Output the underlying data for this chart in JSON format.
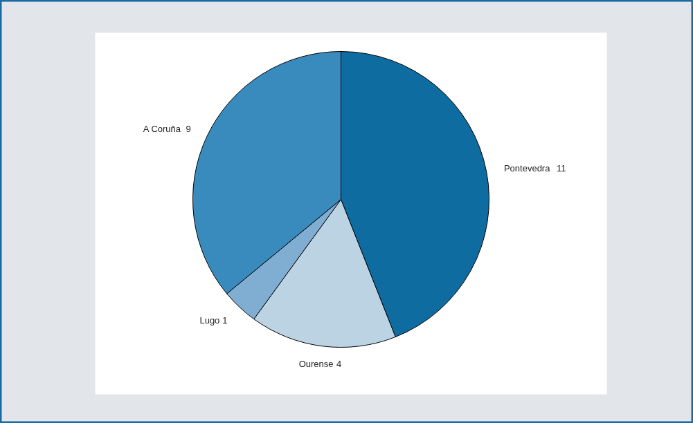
{
  "chart_data": {
    "type": "pie",
    "categories": [
      "Pontevedra",
      "Ourense",
      "Lugo",
      "A Coruña"
    ],
    "values": [
      11,
      4,
      1,
      9
    ],
    "colors": [
      "#0f6ca0",
      "#bcd3e4",
      "#80aed3",
      "#3a8bbd"
    ],
    "data_labels": true
  }
}
